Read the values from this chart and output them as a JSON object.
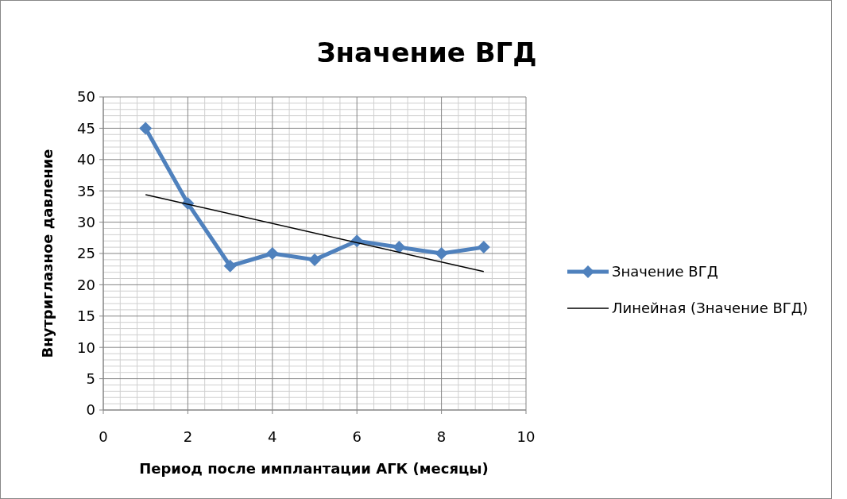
{
  "chart_data": {
    "type": "line",
    "title": "Значение ВГД",
    "xlabel": "Период после имплантации АГК (месяцы)",
    "ylabel": "Внутриглазное давление",
    "x": [
      1,
      2,
      3,
      4,
      5,
      6,
      7,
      8,
      9
    ],
    "series": [
      {
        "name": "Значение ВГД",
        "color": "#4f81bd",
        "values": [
          45,
          33,
          23,
          25,
          24,
          27,
          26,
          25,
          26
        ],
        "marker": "diamond"
      },
      {
        "name": "Линейная (Значение ВГД)",
        "type": "line",
        "color": "#000000",
        "x": [
          1,
          9
        ],
        "values": [
          34.4,
          22.1
        ],
        "marker": "none"
      }
    ],
    "xlim": [
      0,
      10
    ],
    "xticks": [
      0,
      2,
      4,
      6,
      8,
      10
    ],
    "ylim": [
      0,
      50
    ],
    "yticks": [
      0,
      5,
      10,
      15,
      20,
      25,
      30,
      35,
      40,
      45,
      50
    ],
    "grid": true,
    "legend": "right"
  }
}
